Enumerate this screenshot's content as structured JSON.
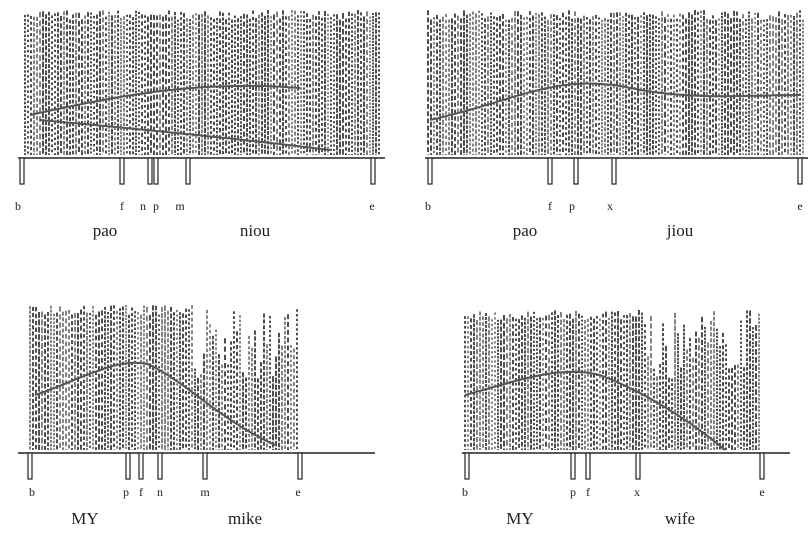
{
  "panels": [
    {
      "markers": [
        "b",
        "f",
        "n",
        "p",
        "m",
        "e"
      ],
      "words": [
        "pao",
        "niou"
      ]
    },
    {
      "markers": [
        "b",
        "f",
        "p",
        "x",
        "e"
      ],
      "words": [
        "pao",
        "jiou"
      ]
    },
    {
      "markers": [
        "b",
        "p",
        "f",
        "n",
        "m",
        "e"
      ],
      "words": [
        "MY",
        "mike"
      ]
    },
    {
      "markers": [
        "b",
        "p",
        "f",
        "x",
        "e"
      ],
      "words": [
        "MY",
        "wife"
      ]
    }
  ]
}
